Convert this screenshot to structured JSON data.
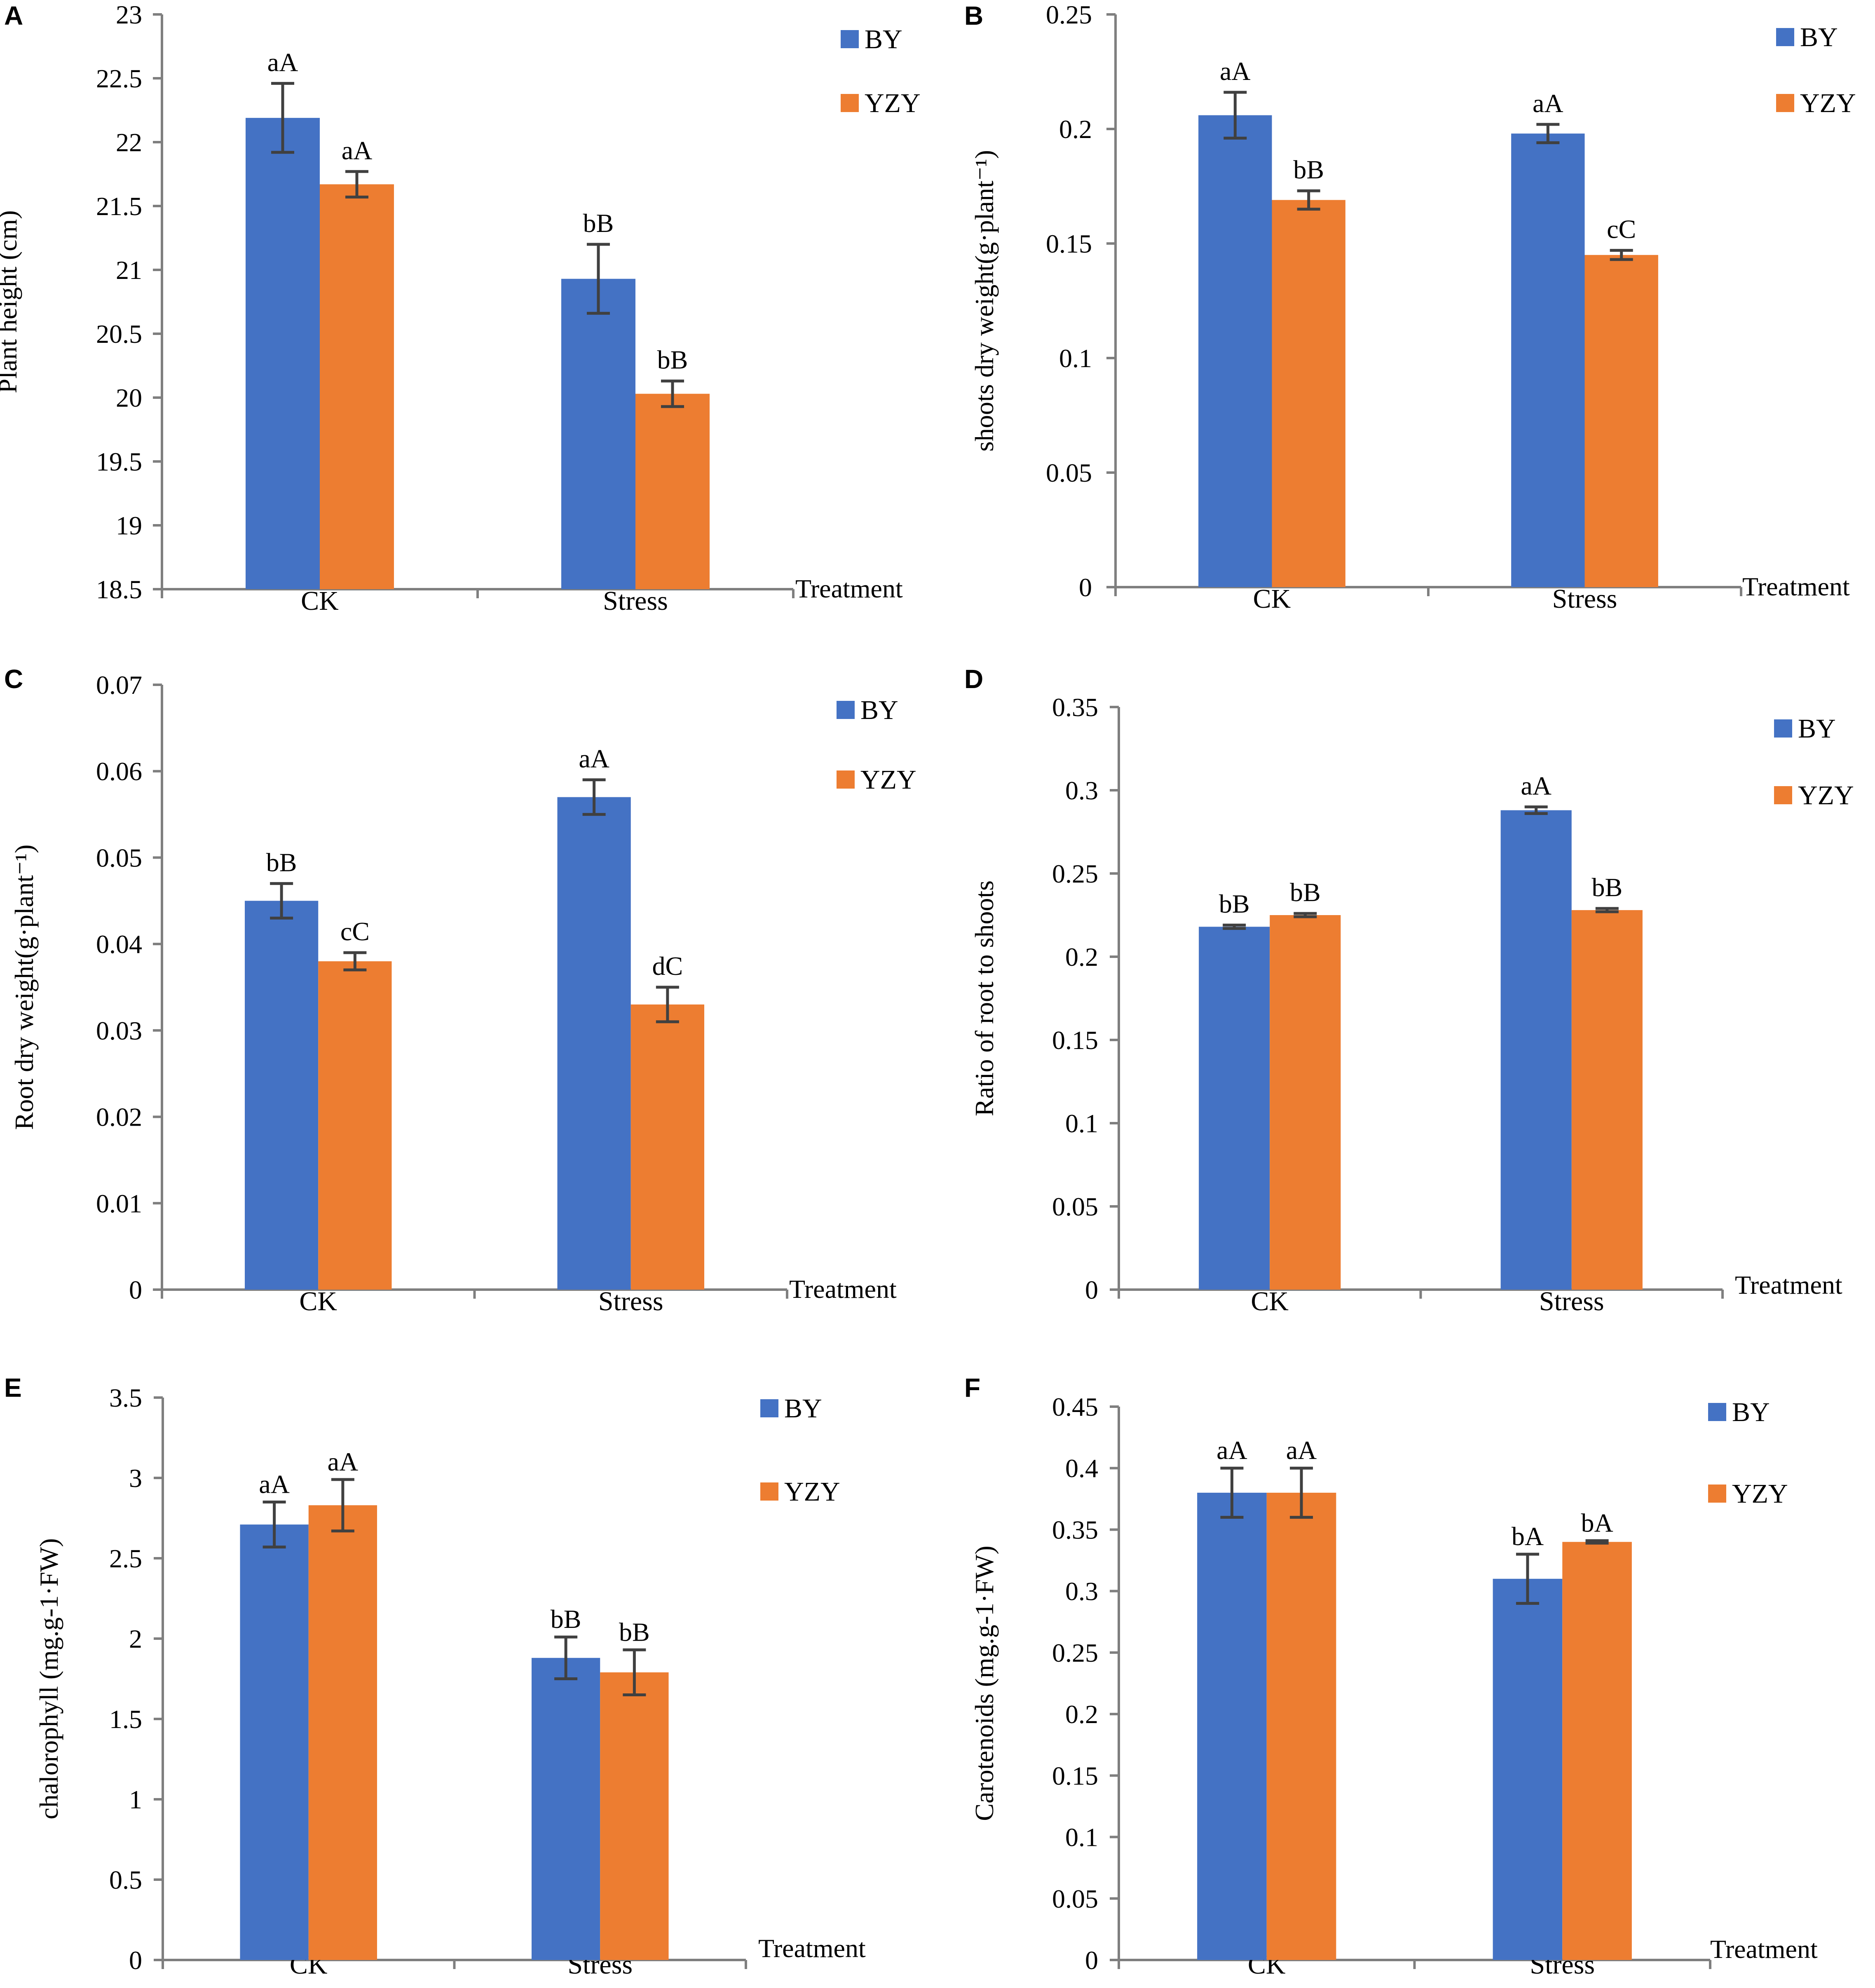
{
  "colors": {
    "BY": "#4472C4",
    "YZY": "#ED7D31",
    "axis": "#7f7f7f",
    "error": "#404040"
  },
  "chart_data": [
    {
      "panel": "A",
      "type": "bar",
      "ylabel": "Plant height (cm)",
      "xlabel": "Treatment",
      "ylim": [
        18.5,
        23
      ],
      "ytick_step": 0.5,
      "yticks": [
        "18.5",
        "19",
        "19.5",
        "20",
        "20.5",
        "21",
        "21.5",
        "22",
        "22.5",
        "23"
      ],
      "categories": [
        "CK",
        "Stress"
      ],
      "series": [
        {
          "name": "BY",
          "values": [
            22.19,
            20.93
          ],
          "errors": [
            0.27,
            0.27
          ],
          "sig": [
            "aA",
            "bB"
          ]
        },
        {
          "name": "YZY",
          "values": [
            21.67,
            20.03
          ],
          "errors": [
            0.1,
            0.1
          ],
          "sig": [
            "aA",
            "bB"
          ]
        }
      ],
      "legend": "top-right"
    },
    {
      "panel": "B",
      "type": "bar",
      "ylabel": "shoots dry weight(g·plant⁻¹)",
      "xlabel": "Treatment",
      "ylim": [
        0,
        0.25
      ],
      "ytick_step": 0.05,
      "yticks": [
        "0",
        "0.05",
        "0.1",
        "0.15",
        "0.2",
        "0.25"
      ],
      "categories": [
        "CK",
        "Stress"
      ],
      "series": [
        {
          "name": "BY",
          "values": [
            0.206,
            0.198
          ],
          "errors": [
            0.01,
            0.004
          ],
          "sig": [
            "aA",
            "aA"
          ]
        },
        {
          "name": "YZY",
          "values": [
            0.169,
            0.145
          ],
          "errors": [
            0.004,
            0.002
          ],
          "sig": [
            "bB",
            "cC"
          ]
        }
      ],
      "legend": "top-right"
    },
    {
      "panel": "C",
      "type": "bar",
      "ylabel": "Root dry weight(g·plant⁻¹)",
      "xlabel": "Treatment",
      "ylim": [
        0,
        0.07
      ],
      "ytick_step": 0.01,
      "yticks": [
        "0",
        "0.01",
        "0.02",
        "0.03",
        "0.04",
        "0.05",
        "0.06",
        "0.07"
      ],
      "categories": [
        "CK",
        "Stress"
      ],
      "series": [
        {
          "name": "BY",
          "values": [
            0.045,
            0.057
          ],
          "errors": [
            0.002,
            0.002
          ],
          "sig": [
            "bB",
            "aA"
          ]
        },
        {
          "name": "YZY",
          "values": [
            0.038,
            0.033
          ],
          "errors": [
            0.001,
            0.002
          ],
          "sig": [
            "cC",
            "dC"
          ]
        }
      ],
      "legend": "top-right"
    },
    {
      "panel": "D",
      "type": "bar",
      "ylabel": "Ratio of root to shoots",
      "xlabel": "Treatment",
      "ylim": [
        0,
        0.35
      ],
      "ytick_step": 0.05,
      "yticks": [
        "0",
        "0.05",
        "0.1",
        "0.15",
        "0.2",
        "0.25",
        "0.3",
        "0.35"
      ],
      "categories": [
        "CK",
        "Stress"
      ],
      "series": [
        {
          "name": "BY",
          "values": [
            0.218,
            0.288
          ],
          "errors": [
            0.001,
            0.002
          ],
          "sig": [
            "bB",
            "aA"
          ]
        },
        {
          "name": "YZY",
          "values": [
            0.225,
            0.228
          ],
          "errors": [
            0.001,
            0.001
          ],
          "sig": [
            "bB",
            "bB"
          ]
        }
      ],
      "legend": "top-right"
    },
    {
      "panel": "E",
      "type": "bar",
      "ylabel": "chalorophyll  (mg.g-1·FW)",
      "xlabel": "Treatment",
      "ylim": [
        0,
        3.5
      ],
      "ytick_step": 0.5,
      "yticks": [
        "0",
        "0.5",
        "1",
        "1.5",
        "2",
        "2.5",
        "3",
        "3.5"
      ],
      "categories": [
        "CK",
        "Stress"
      ],
      "series": [
        {
          "name": "BY",
          "values": [
            2.71,
            1.88
          ],
          "errors": [
            0.14,
            0.13
          ],
          "sig": [
            "aA",
            "bB"
          ]
        },
        {
          "name": "YZY",
          "values": [
            2.83,
            1.79
          ],
          "errors": [
            0.16,
            0.14
          ],
          "sig": [
            "aA",
            "bB"
          ]
        }
      ],
      "legend": "top-right"
    },
    {
      "panel": "F",
      "type": "bar",
      "ylabel": "Carotenoids (mg.g-1·FW)",
      "xlabel": "Treatment",
      "ylim": [
        0,
        0.45
      ],
      "ytick_step": 0.05,
      "yticks": [
        "0",
        "0.05",
        "0.1",
        "0.15",
        "0.2",
        "0.25",
        "0.3",
        "0.35",
        "0.4",
        "0.45"
      ],
      "categories": [
        "CK",
        "Stress"
      ],
      "series": [
        {
          "name": "BY",
          "values": [
            0.38,
            0.31
          ],
          "errors": [
            0.02,
            0.02
          ],
          "sig": [
            "aA",
            "bA"
          ]
        },
        {
          "name": "YZY",
          "values": [
            0.38,
            0.34
          ],
          "errors": [
            0.02,
            0.001
          ],
          "sig": [
            "aA",
            "bA"
          ]
        }
      ],
      "legend": "top-right"
    }
  ]
}
